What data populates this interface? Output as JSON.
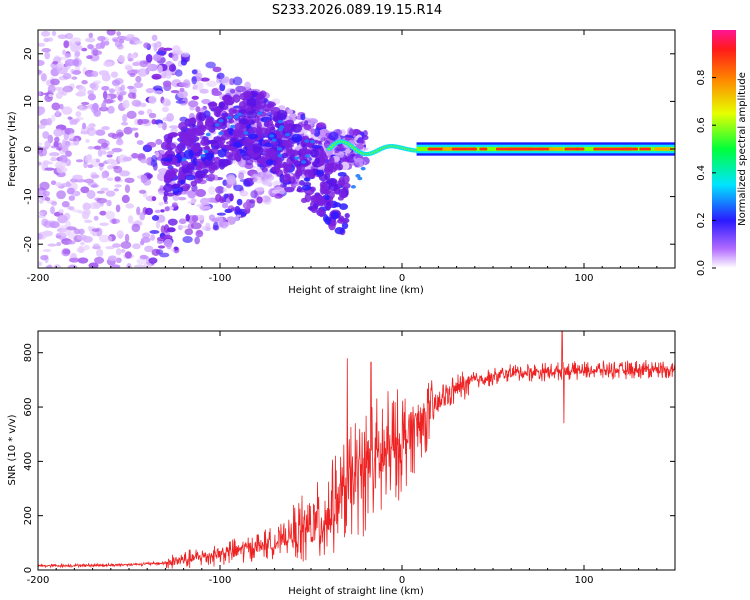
{
  "title": "S233.2026.089.19.15.R14",
  "chart_data": [
    {
      "type": "heatmap",
      "name": "spectrogram",
      "xlabel": "Height of straight line (km)",
      "ylabel": "Frequency (Hz)",
      "xlim": [
        -200,
        150
      ],
      "ylim": [
        -25,
        25
      ],
      "xticks": [
        -200,
        -100,
        0,
        100
      ],
      "yticks": [
        -20,
        -10,
        0,
        10,
        20
      ],
      "colorbar": {
        "label": "Normalized spectral amplitude",
        "range": [
          0,
          1
        ],
        "ticks": [
          "0.0",
          "0.2",
          "0.4",
          "0.6",
          "0.8"
        ],
        "colors": [
          "#ffffff",
          "#8a2be2",
          "#1a1aff",
          "#00ffff",
          "#00ff00",
          "#ffff00",
          "#ff8800",
          "#ff0000",
          "#ff1493"
        ]
      },
      "features": {
        "noise_region_km": [
          -200,
          -130
        ],
        "scattered_region_km": [
          -130,
          -20
        ],
        "stable_tone_start_km": 10,
        "stable_tone_frequency_hz": 0
      }
    },
    {
      "type": "line",
      "name": "snr",
      "xlabel": "Height of straight line (km)",
      "ylabel": "SNR (10 * v/v)",
      "xlim": [
        -200,
        150
      ],
      "ylim": [
        0,
        880
      ],
      "xticks": [
        -200,
        -100,
        0,
        100
      ],
      "yticks": [
        0,
        200,
        400,
        600,
        800
      ],
      "color": "#ee2222",
      "profile": [
        {
          "x": -200,
          "y": 15
        },
        {
          "x": -160,
          "y": 18
        },
        {
          "x": -130,
          "y": 25
        },
        {
          "x": -100,
          "y": 60
        },
        {
          "x": -70,
          "y": 100
        },
        {
          "x": -45,
          "y": 170
        },
        {
          "x": -35,
          "y": 250
        },
        {
          "x": -25,
          "y": 340
        },
        {
          "x": -15,
          "y": 390
        },
        {
          "x": -5,
          "y": 440
        },
        {
          "x": 5,
          "y": 510
        },
        {
          "x": 15,
          "y": 580
        },
        {
          "x": 25,
          "y": 650
        },
        {
          "x": 40,
          "y": 700
        },
        {
          "x": 60,
          "y": 725
        },
        {
          "x": 100,
          "y": 735
        },
        {
          "x": 150,
          "y": 740
        }
      ],
      "spikes": [
        {
          "x": -30,
          "y": 780
        },
        {
          "x": -17,
          "y": 765
        },
        {
          "x": 88,
          "y": 885
        },
        {
          "x": 89,
          "y": 540
        }
      ]
    }
  ]
}
